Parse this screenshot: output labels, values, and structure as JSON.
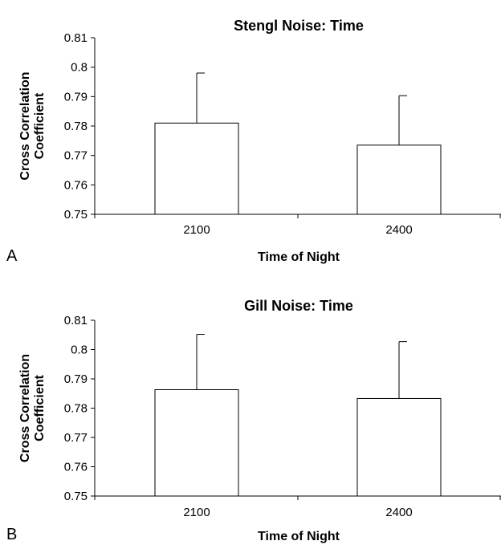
{
  "chart_data": [
    {
      "type": "bar",
      "panel_label": "A",
      "title": "Stengl Noise: Time",
      "xlabel": "Time of Night",
      "ylabel": [
        "Cross Correlation",
        "Coefficient"
      ],
      "categories": [
        "2100",
        "2400"
      ],
      "values": [
        0.781,
        0.7735
      ],
      "error_upper": [
        0.798,
        0.7903
      ],
      "ylim": [
        0.75,
        0.81
      ],
      "yticks": [
        "0.75",
        "0.76",
        "0.77",
        "0.78",
        "0.79",
        "0.8",
        "0.81"
      ],
      "bar_color": "#ffffff",
      "grid": false,
      "legend": "none"
    },
    {
      "type": "bar",
      "panel_label": "B",
      "title": "Gill Noise: Time",
      "xlabel": "Time of Night",
      "ylabel": [
        "Cross Correlation",
        "Coefficient"
      ],
      "categories": [
        "2100",
        "2400"
      ],
      "values": [
        0.7863,
        0.7833
      ],
      "error_upper": [
        0.8052,
        0.8027
      ],
      "ylim": [
        0.75,
        0.81
      ],
      "yticks": [
        "0.75",
        "0.76",
        "0.77",
        "0.78",
        "0.79",
        "0.8",
        "0.81"
      ],
      "bar_color": "#ffffff",
      "grid": false,
      "legend": "none"
    }
  ]
}
